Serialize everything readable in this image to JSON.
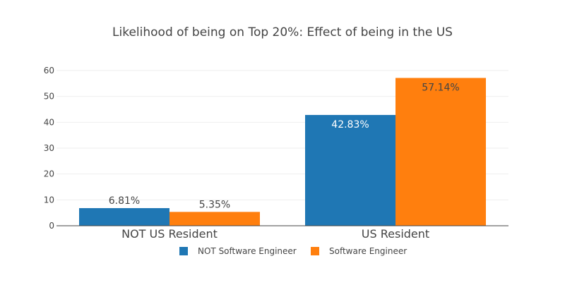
{
  "chart_data": {
    "type": "bar",
    "title": "Likelihood of being on Top 20%: Effect of being in the US",
    "categories": [
      "NOT US Resident",
      "US Resident"
    ],
    "series": [
      {
        "name": "NOT Software Engineer",
        "color": "#1f77b4",
        "values": [
          6.81,
          42.83
        ],
        "labels": [
          "6.81%",
          "42.83%"
        ]
      },
      {
        "name": "Software Engineer",
        "color": "#ff7f0e",
        "values": [
          5.35,
          57.14
        ],
        "labels": [
          "5.35%",
          "57.14%"
        ]
      }
    ],
    "ylim": [
      0,
      60
    ],
    "yticks": [
      0,
      10,
      20,
      30,
      40,
      50,
      60
    ],
    "grid": true,
    "legend_position": "bottom-center",
    "barmode": "grouped"
  }
}
